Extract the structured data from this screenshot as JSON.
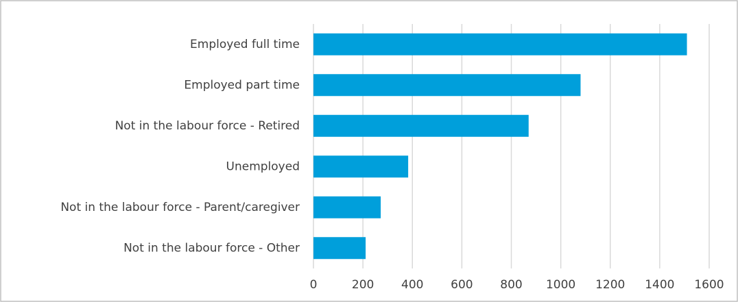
{
  "chart_data": {
    "type": "bar",
    "orientation": "horizontal",
    "categories": [
      "Employed full time",
      "Employed part time",
      "Not in the labour force - Retired",
      "Unemployed",
      "Not in the labour force - Parent/caregiver",
      "Not in the labour force - Other"
    ],
    "values": [
      1510,
      1080,
      870,
      383,
      272,
      211
    ],
    "color": "#009fdb",
    "xlim": [
      0,
      1600
    ],
    "xticks": [
      0,
      200,
      400,
      600,
      800,
      1000,
      1200,
      1400,
      1600
    ],
    "grid": true
  }
}
